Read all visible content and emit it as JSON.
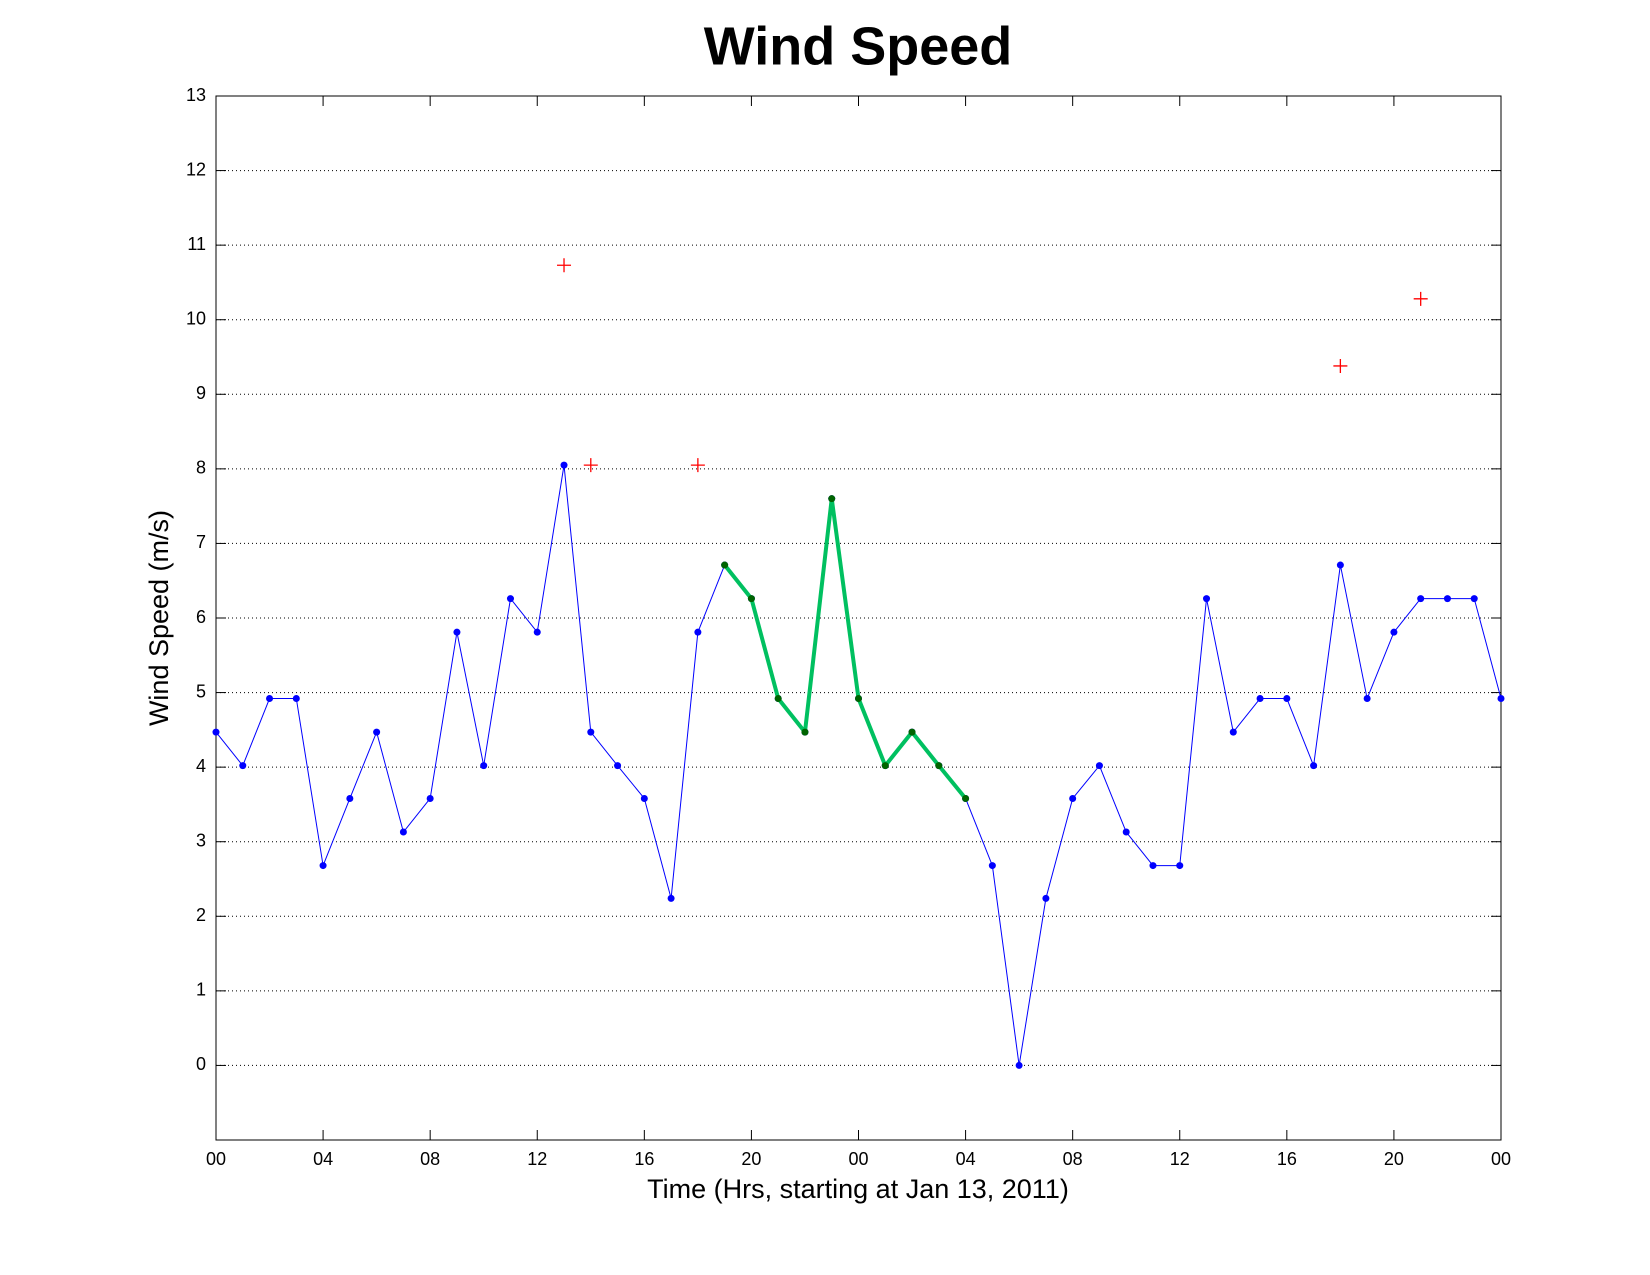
{
  "chart_data": {
    "type": "line",
    "title": "Wind Speed",
    "xlabel": "Time (Hrs, starting at Jan 13, 2011)",
    "ylabel": "Wind Speed (m/s)",
    "xlim": [
      0,
      48
    ],
    "ylim": [
      -1,
      13
    ],
    "xticks": [
      {
        "value": 0,
        "label": "00"
      },
      {
        "value": 4,
        "label": "04"
      },
      {
        "value": 8,
        "label": "08"
      },
      12,
      16,
      20,
      {
        "value": 24,
        "label": "00"
      },
      {
        "value": 28,
        "label": "04"
      },
      {
        "value": 32,
        "label": "08"
      },
      {
        "value": 36,
        "label": "12"
      },
      {
        "value": 40,
        "label": "16"
      },
      {
        "value": 44,
        "label": "20"
      },
      {
        "value": 48,
        "label": "00"
      }
    ],
    "yticks": [
      0,
      1,
      2,
      3,
      4,
      5,
      6,
      7,
      8,
      9,
      10,
      11,
      12,
      13
    ],
    "grid": true,
    "series": [
      {
        "type": "line",
        "color": "#0000ff",
        "marker_color": "#0000ff",
        "line_width": 1,
        "x": [
          0,
          1,
          2,
          3,
          4,
          5,
          6,
          7,
          8,
          9,
          10,
          11,
          12,
          13,
          14,
          15,
          16,
          17,
          18,
          19,
          20,
          21,
          22,
          23,
          24,
          25,
          26,
          27,
          28,
          29,
          30,
          31,
          32,
          33,
          34,
          35,
          36,
          37,
          38,
          39,
          40,
          41,
          42,
          43,
          44,
          45,
          46,
          47,
          48
        ],
        "values": [
          4.47,
          4.02,
          4.92,
          4.92,
          2.68,
          3.58,
          4.47,
          3.13,
          3.58,
          5.81,
          4.02,
          6.26,
          5.81,
          8.05,
          4.47,
          4.02,
          3.58,
          2.24,
          5.81,
          6.71,
          6.26,
          4.92,
          4.47,
          7.6,
          4.92,
          4.02,
          4.47,
          4.02,
          3.58,
          2.68,
          0,
          2.24,
          3.58,
          4.02,
          3.13,
          2.68,
          2.68,
          6.26,
          4.47,
          4.92,
          4.92,
          4.02,
          6.71,
          4.92,
          5.81,
          6.26,
          6.26,
          6.26,
          4.92
        ]
      },
      {
        "type": "line",
        "color": "#00c060",
        "marker_color": "#006400",
        "line_width": 4,
        "x": [
          19,
          20,
          21,
          22,
          23,
          24,
          25,
          26,
          27,
          28
        ],
        "values": [
          6.71,
          6.26,
          4.92,
          4.47,
          7.6,
          4.92,
          4.02,
          4.47,
          4.02,
          3.58
        ]
      },
      {
        "type": "scatter",
        "color": "#ff0000",
        "x": [
          13,
          14,
          18,
          42,
          45
        ],
        "values": [
          10.73,
          8.05,
          8.05,
          9.38,
          10.28
        ]
      }
    ]
  }
}
